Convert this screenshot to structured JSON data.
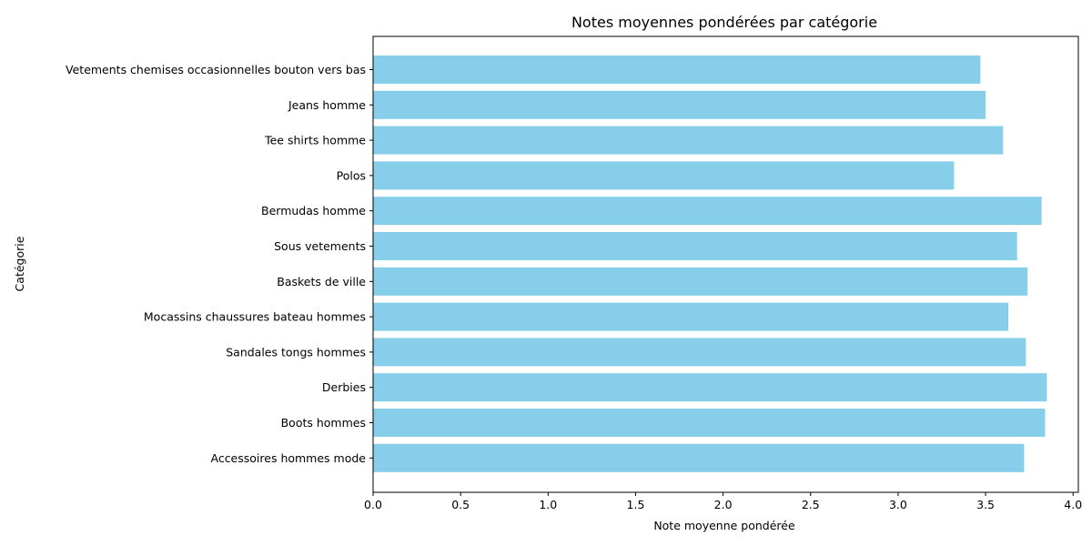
{
  "chart_data": {
    "type": "bar",
    "orientation": "horizontal",
    "title": "Notes moyennes pondérées par catégorie",
    "xlabel": "Note moyenne pondérée",
    "ylabel": "Catégorie",
    "xlim": [
      0,
      4.03
    ],
    "xticks": [
      "0.0",
      "0.5",
      "1.0",
      "1.5",
      "2.0",
      "2.5",
      "3.0",
      "3.5",
      "4.0"
    ],
    "grid": false,
    "bar_color": "#87ceeb",
    "categories": [
      "Vetements chemises occasionnelles bouton vers bas",
      "Jeans homme",
      "Tee shirts homme",
      "Polos",
      "Bermudas homme",
      "Sous vetements",
      "Baskets de ville",
      "Mocassins chaussures bateau hommes",
      "Sandales tongs hommes",
      "Derbies",
      "Boots hommes",
      "Accessoires hommes mode"
    ],
    "values": [
      3.47,
      3.5,
      3.6,
      3.32,
      3.82,
      3.68,
      3.74,
      3.63,
      3.73,
      3.85,
      3.84,
      3.72
    ]
  }
}
